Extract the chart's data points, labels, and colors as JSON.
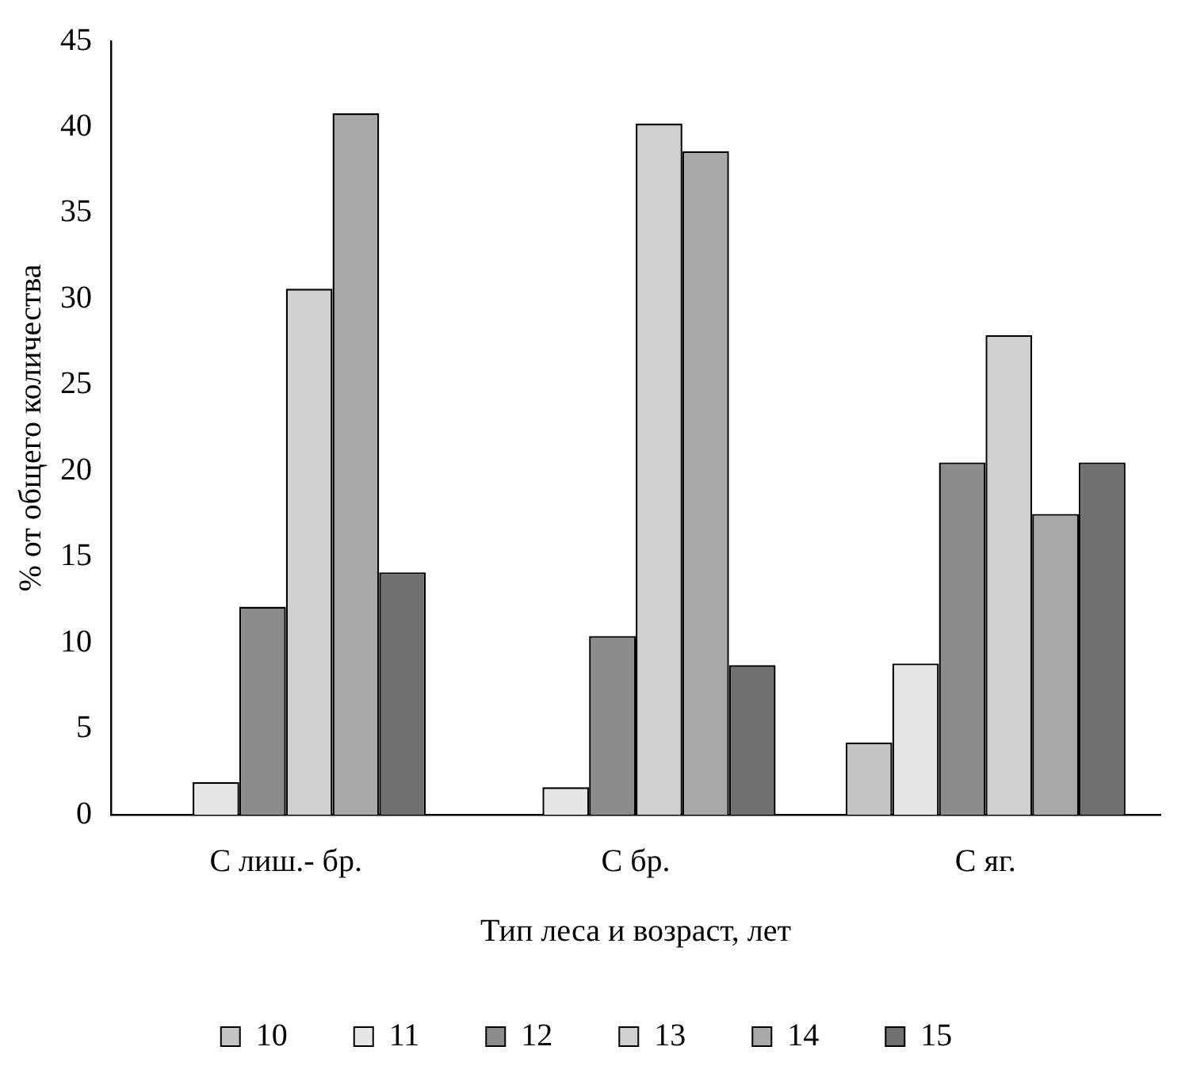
{
  "chart_data": {
    "type": "bar",
    "xlabel": "Тип леса и возраст, лет",
    "ylabel": "% от общего количества",
    "categories": [
      "С лиш.- бр.",
      "С бр.",
      "С яг."
    ],
    "series": [
      {
        "name": "10",
        "color": "#c4c4c4",
        "values": [
          null,
          null,
          4.2
        ]
      },
      {
        "name": "11",
        "color": "#e6e6e6",
        "values": [
          1.9,
          1.6,
          8.8
        ]
      },
      {
        "name": "12",
        "color": "#8c8c8c",
        "values": [
          12.1,
          10.4,
          20.5
        ]
      },
      {
        "name": "13",
        "color": "#d0d0d0",
        "values": [
          30.6,
          40.2,
          27.9
        ]
      },
      {
        "name": "14",
        "color": "#a8a8a8",
        "values": [
          40.8,
          38.6,
          17.5
        ]
      },
      {
        "name": "15",
        "color": "#707070",
        "values": [
          14.1,
          8.7,
          20.5
        ]
      }
    ],
    "ylim": [
      0,
      45
    ],
    "yticks": [
      0,
      5,
      10,
      15,
      20,
      25,
      30,
      35,
      40,
      45
    ],
    "grid": false,
    "legend": "bottom"
  }
}
